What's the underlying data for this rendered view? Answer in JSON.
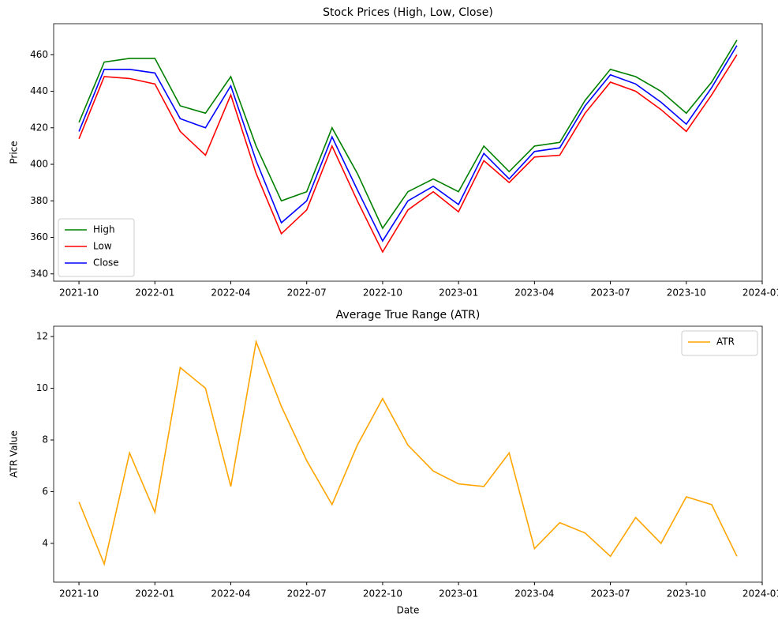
{
  "chart_data": [
    {
      "type": "line",
      "title": "Stock Prices (High, Low, Close)",
      "y_label": "Price",
      "x": [
        "2021-10",
        "2021-11",
        "2021-12",
        "2022-01",
        "2022-02",
        "2022-03",
        "2022-04",
        "2022-05",
        "2022-06",
        "2022-07",
        "2022-08",
        "2022-09",
        "2022-10",
        "2022-11",
        "2022-12",
        "2023-01",
        "2023-02",
        "2023-03",
        "2023-04",
        "2023-05",
        "2023-06",
        "2023-07",
        "2023-08",
        "2023-09",
        "2023-10",
        "2023-11",
        "2023-12"
      ],
      "series": [
        {
          "name": "High",
          "color": "green",
          "values": [
            423,
            456,
            458,
            458,
            432,
            428,
            448,
            410,
            380,
            385,
            420,
            395,
            365,
            385,
            392,
            385,
            410,
            396,
            410,
            412,
            435,
            452,
            448,
            440,
            428,
            445,
            468
          ]
        },
        {
          "name": "Low",
          "color": "red",
          "values": [
            414,
            448,
            447,
            444,
            418,
            405,
            438,
            395,
            362,
            375,
            410,
            380,
            352,
            375,
            385,
            374,
            402,
            390,
            404,
            405,
            428,
            445,
            440,
            430,
            418,
            438,
            460
          ]
        },
        {
          "name": "Close",
          "color": "blue",
          "values": [
            418,
            452,
            452,
            450,
            425,
            420,
            443,
            402,
            368,
            380,
            415,
            386,
            358,
            380,
            388,
            378,
            406,
            392,
            407,
            409,
            432,
            449,
            444,
            434,
            422,
            442,
            465
          ]
        }
      ],
      "xlim": [
        "2021-09",
        "2024-01"
      ],
      "xticks": [
        "2021-10",
        "2022-01",
        "2022-04",
        "2022-07",
        "2022-10",
        "2023-01",
        "2023-04",
        "2023-07",
        "2023-10",
        "2024-01"
      ],
      "ylim": [
        336,
        477
      ],
      "yticks": [
        340,
        360,
        380,
        400,
        420,
        440,
        460
      ],
      "legend": "lower left"
    },
    {
      "type": "line",
      "title": "Average True Range (ATR)",
      "x_label": "Date",
      "y_label": "ATR Value",
      "x": [
        "2021-10",
        "2021-11",
        "2021-12",
        "2022-01",
        "2022-02",
        "2022-03",
        "2022-04",
        "2022-05",
        "2022-06",
        "2022-07",
        "2022-08",
        "2022-09",
        "2022-10",
        "2022-11",
        "2022-12",
        "2023-01",
        "2023-02",
        "2023-03",
        "2023-04",
        "2023-05",
        "2023-06",
        "2023-07",
        "2023-08",
        "2023-09",
        "2023-10",
        "2023-11",
        "2023-12"
      ],
      "series": [
        {
          "name": "ATR",
          "color": "orange",
          "values": [
            5.6,
            3.2,
            7.5,
            5.2,
            10.8,
            10.0,
            6.2,
            11.8,
            9.3,
            7.2,
            5.5,
            7.8,
            9.6,
            7.8,
            6.8,
            6.3,
            6.2,
            7.5,
            3.8,
            4.8,
            4.4,
            3.5,
            5.0,
            4.0,
            5.8,
            5.5,
            3.5
          ]
        }
      ],
      "xlim": [
        "2021-09",
        "2024-01"
      ],
      "xticks": [
        "2021-10",
        "2022-01",
        "2022-04",
        "2022-07",
        "2022-10",
        "2023-01",
        "2023-04",
        "2023-07",
        "2023-10",
        "2024-01"
      ],
      "ylim": [
        2.5,
        12.4
      ],
      "yticks": [
        4,
        6,
        8,
        10,
        12
      ],
      "legend": "upper right"
    }
  ]
}
